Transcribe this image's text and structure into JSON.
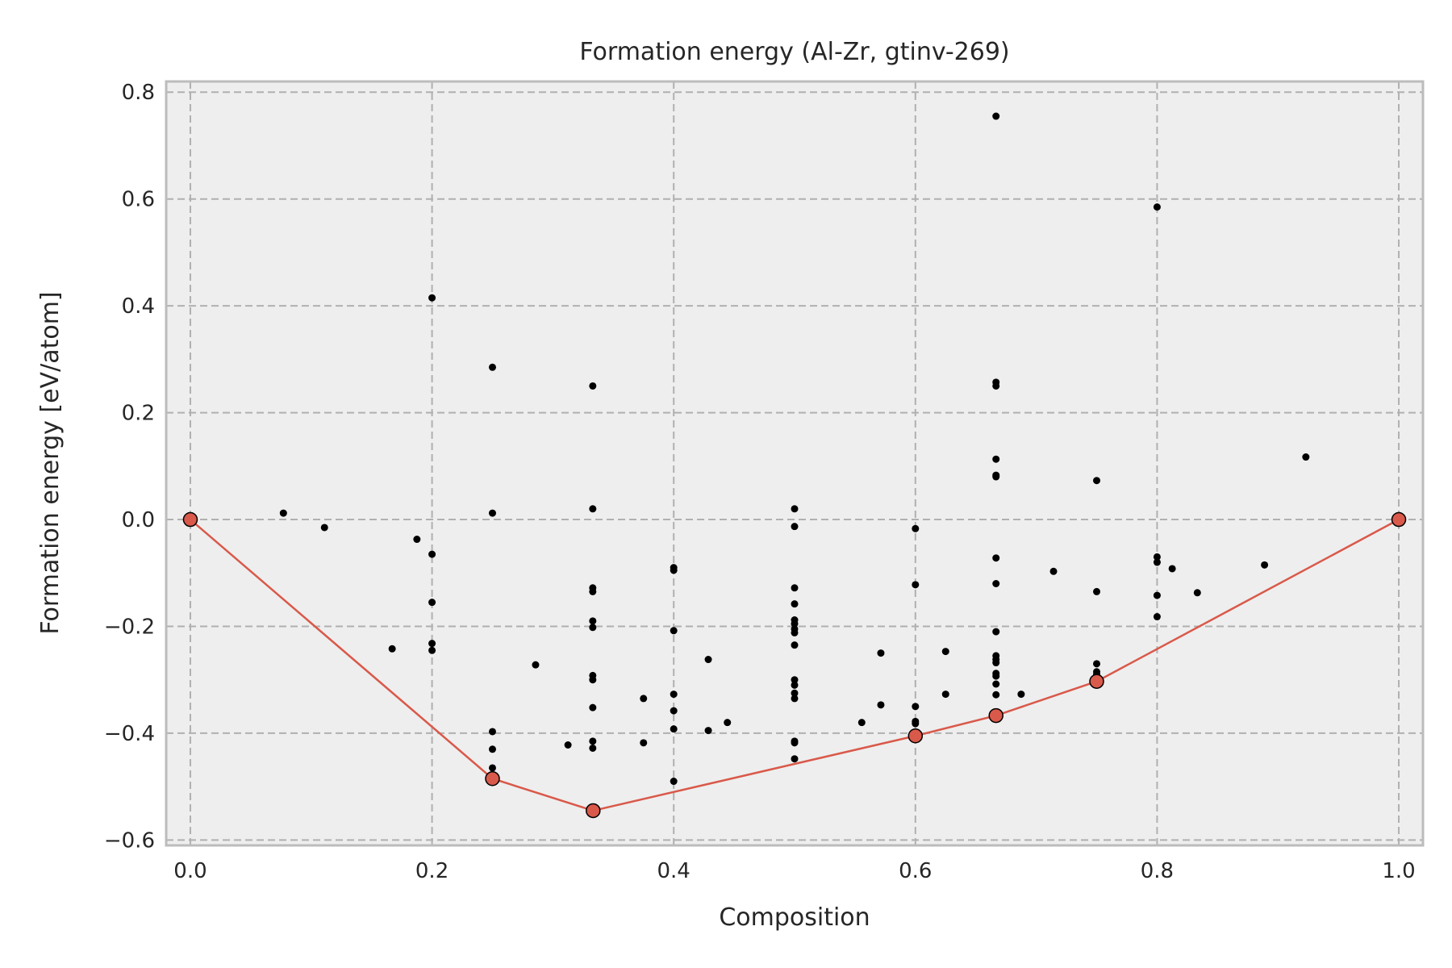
{
  "chart_data": {
    "type": "scatter",
    "title": "Formation energy (Al-Zr, gtinv-269)",
    "xlabel": "Composition",
    "ylabel": "Formation energy [eV/atom]",
    "xlim": [
      -0.02,
      1.02
    ],
    "ylim": [
      -0.61,
      0.82
    ],
    "xticks": [
      "0.0",
      "0.2",
      "0.4",
      "0.6",
      "0.8",
      "1.0"
    ],
    "yticks": [
      "0.8",
      "0.6",
      "0.4",
      "0.2",
      "0.0",
      "−0.2",
      "−0.4",
      "−0.6"
    ],
    "grid": true,
    "colors": {
      "hull": "#d9594a",
      "points": "#000000",
      "background": "#eeeeee",
      "frame": "#bcbcbc"
    },
    "series": [
      {
        "role": "structures",
        "points": [
          [
            0.077,
            0.012
          ],
          [
            0.111,
            -0.015
          ],
          [
            0.167,
            -0.242
          ],
          [
            0.1875,
            -0.037
          ],
          [
            0.2,
            0.415
          ],
          [
            0.2,
            -0.065
          ],
          [
            0.2,
            -0.155
          ],
          [
            0.2,
            -0.232
          ],
          [
            0.2,
            -0.245
          ],
          [
            0.25,
            0.285
          ],
          [
            0.25,
            0.012
          ],
          [
            0.25,
            -0.397
          ],
          [
            0.25,
            -0.43
          ],
          [
            0.25,
            -0.465
          ],
          [
            0.25,
            -0.48
          ],
          [
            0.2857,
            -0.272
          ],
          [
            0.3125,
            -0.422
          ],
          [
            0.333,
            0.25
          ],
          [
            0.333,
            0.02
          ],
          [
            0.333,
            -0.128
          ],
          [
            0.333,
            -0.135
          ],
          [
            0.333,
            -0.19
          ],
          [
            0.333,
            -0.202
          ],
          [
            0.333,
            -0.292
          ],
          [
            0.333,
            -0.3
          ],
          [
            0.333,
            -0.352
          ],
          [
            0.333,
            -0.415
          ],
          [
            0.333,
            -0.428
          ],
          [
            0.375,
            -0.335
          ],
          [
            0.375,
            -0.418
          ],
          [
            0.4,
            -0.09
          ],
          [
            0.4,
            -0.095
          ],
          [
            0.4,
            -0.208
          ],
          [
            0.4,
            -0.327
          ],
          [
            0.4,
            -0.358
          ],
          [
            0.4,
            -0.392
          ],
          [
            0.4,
            -0.49
          ],
          [
            0.4286,
            -0.262
          ],
          [
            0.4286,
            -0.395
          ],
          [
            0.4444,
            -0.38
          ],
          [
            0.5,
            0.02
          ],
          [
            0.5,
            -0.013
          ],
          [
            0.5,
            -0.128
          ],
          [
            0.5,
            -0.158
          ],
          [
            0.5,
            -0.188
          ],
          [
            0.5,
            -0.195
          ],
          [
            0.5,
            -0.205
          ],
          [
            0.5,
            -0.212
          ],
          [
            0.5,
            -0.235
          ],
          [
            0.5,
            -0.3
          ],
          [
            0.5,
            -0.31
          ],
          [
            0.5,
            -0.325
          ],
          [
            0.5,
            -0.335
          ],
          [
            0.5,
            -0.415
          ],
          [
            0.5,
            -0.418
          ],
          [
            0.5,
            -0.448
          ],
          [
            0.5556,
            -0.38
          ],
          [
            0.5714,
            -0.25
          ],
          [
            0.5714,
            -0.347
          ],
          [
            0.6,
            -0.017
          ],
          [
            0.6,
            -0.122
          ],
          [
            0.6,
            -0.35
          ],
          [
            0.6,
            -0.378
          ],
          [
            0.6,
            -0.382
          ],
          [
            0.625,
            -0.247
          ],
          [
            0.625,
            -0.327
          ],
          [
            0.6667,
            0.755
          ],
          [
            0.6667,
            0.257
          ],
          [
            0.6667,
            0.25
          ],
          [
            0.6667,
            0.113
          ],
          [
            0.6667,
            0.083
          ],
          [
            0.6667,
            0.08
          ],
          [
            0.6667,
            -0.072
          ],
          [
            0.6667,
            -0.12
          ],
          [
            0.6667,
            -0.21
          ],
          [
            0.6667,
            -0.255
          ],
          [
            0.6667,
            -0.262
          ],
          [
            0.6667,
            -0.268
          ],
          [
            0.6667,
            -0.288
          ],
          [
            0.6667,
            -0.293
          ],
          [
            0.6667,
            -0.308
          ],
          [
            0.6667,
            -0.328
          ],
          [
            0.6875,
            -0.327
          ],
          [
            0.7143,
            -0.097
          ],
          [
            0.75,
            0.073
          ],
          [
            0.75,
            -0.135
          ],
          [
            0.75,
            -0.27
          ],
          [
            0.75,
            -0.285
          ],
          [
            0.75,
            -0.29
          ],
          [
            0.8,
            0.585
          ],
          [
            0.8,
            -0.07
          ],
          [
            0.8,
            -0.08
          ],
          [
            0.8,
            -0.142
          ],
          [
            0.8,
            -0.182
          ],
          [
            0.8125,
            -0.092
          ],
          [
            0.8333,
            -0.137
          ],
          [
            0.8889,
            -0.085
          ],
          [
            0.9231,
            0.117
          ]
        ]
      },
      {
        "role": "convex-hull",
        "points": [
          [
            0.0,
            0.0
          ],
          [
            0.25,
            -0.485
          ],
          [
            0.3333,
            -0.545
          ],
          [
            0.6,
            -0.405
          ],
          [
            0.6667,
            -0.367
          ],
          [
            0.75,
            -0.303
          ],
          [
            1.0,
            0.0
          ]
        ]
      }
    ]
  }
}
